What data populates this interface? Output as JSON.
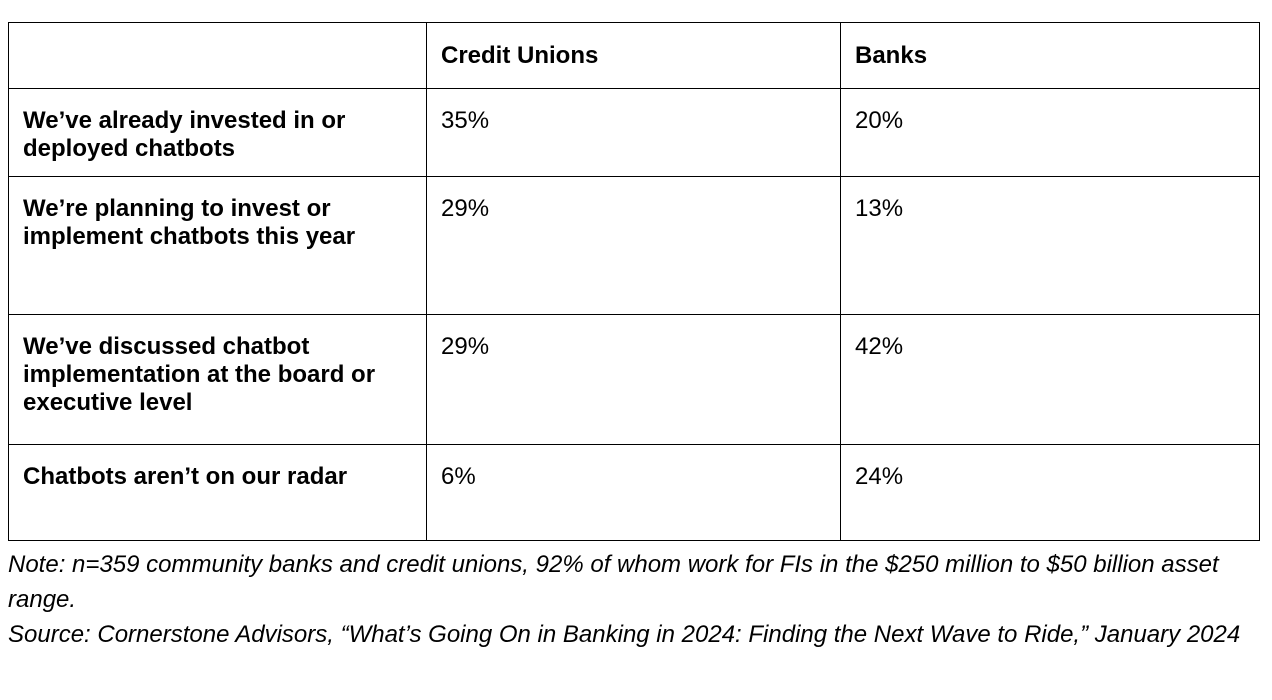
{
  "table": {
    "header": [
      "Credit Unions",
      "Banks"
    ],
    "rows": [
      [
        "We’ve already invested in or deployed chatbots",
        "35%",
        "20%"
      ],
      [
        "We’re planning to invest or implement chatbots this year",
        "29%",
        "13%"
      ],
      [
        "We’ve discussed chatbot implementation at the board or executive level",
        "29%",
        "42%"
      ],
      [
        "Chatbots aren’t on our radar",
        "6%",
        "24%"
      ]
    ]
  },
  "notes": [
    "Note: n=359 community banks and credit unions, 92% of whom work for FIs in the $250 million to $50 billion asset range.",
    "Source: Cornerstone Advisors, “What’s Going On in Banking in 2024: Finding the Next Wave to Ride,” January 2024"
  ]
}
